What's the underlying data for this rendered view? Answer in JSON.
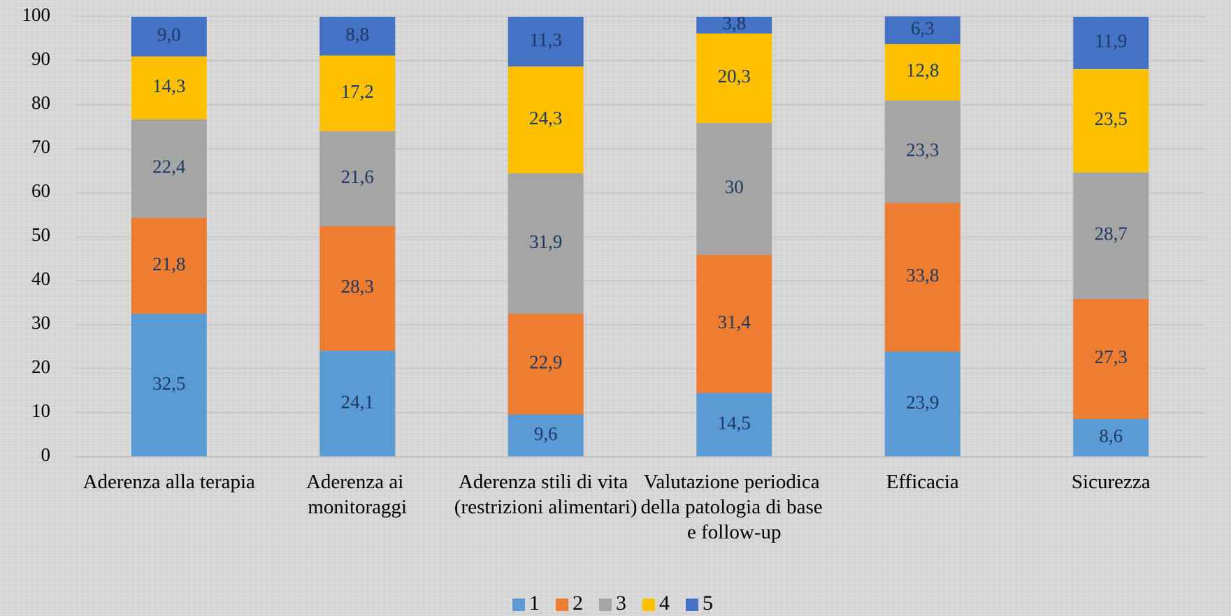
{
  "chart_data": {
    "type": "stacked_bar",
    "categories": [
      "Aderenza alla terapia",
      "Aderenza ai monitoraggi",
      "Aderenza stili di vita (restrizioni alimentari)",
      "Valutazione periodica della patologia di base e follow-up",
      "Efficacia",
      "Sicurezza"
    ],
    "series": [
      {
        "name": "1",
        "color": "#5b9bd5",
        "values": [
          32.5,
          24.1,
          9.6,
          14.5,
          23.9,
          8.6
        ],
        "value_labels": [
          "32,5",
          "24,1",
          "9,6",
          "14,5",
          "23,9",
          "8,6"
        ]
      },
      {
        "name": "2",
        "color": "#ed7d31",
        "values": [
          21.8,
          28.3,
          22.9,
          31.4,
          33.8,
          27.3
        ],
        "value_labels": [
          "21,8",
          "28,3",
          "22,9",
          "31,4",
          "33,8",
          "27,3"
        ]
      },
      {
        "name": "3",
        "color": "#a5a5a5",
        "values": [
          22.4,
          21.6,
          31.9,
          30,
          23.3,
          28.7
        ],
        "value_labels": [
          "22,4",
          "21,6",
          "31,9",
          "30",
          "23,3",
          "28,7"
        ]
      },
      {
        "name": "4",
        "color": "#ffc000",
        "values": [
          14.3,
          17.2,
          24.3,
          20.3,
          12.8,
          23.5
        ],
        "value_labels": [
          "14,3",
          "17,2",
          "24,3",
          "20,3",
          "12,8",
          "23,5"
        ]
      },
      {
        "name": "5",
        "color": "#4472c4",
        "values": [
          9.0,
          8.8,
          11.3,
          3.8,
          6.3,
          11.9
        ],
        "value_labels": [
          "9,0",
          "8,8",
          "11,3",
          "3,8",
          "6,3",
          "11,9"
        ]
      }
    ],
    "ylim": [
      0,
      100
    ],
    "yticks": [
      0,
      10,
      20,
      30,
      40,
      50,
      60,
      70,
      80,
      90,
      100
    ],
    "grid": true,
    "legend": "bottom"
  }
}
